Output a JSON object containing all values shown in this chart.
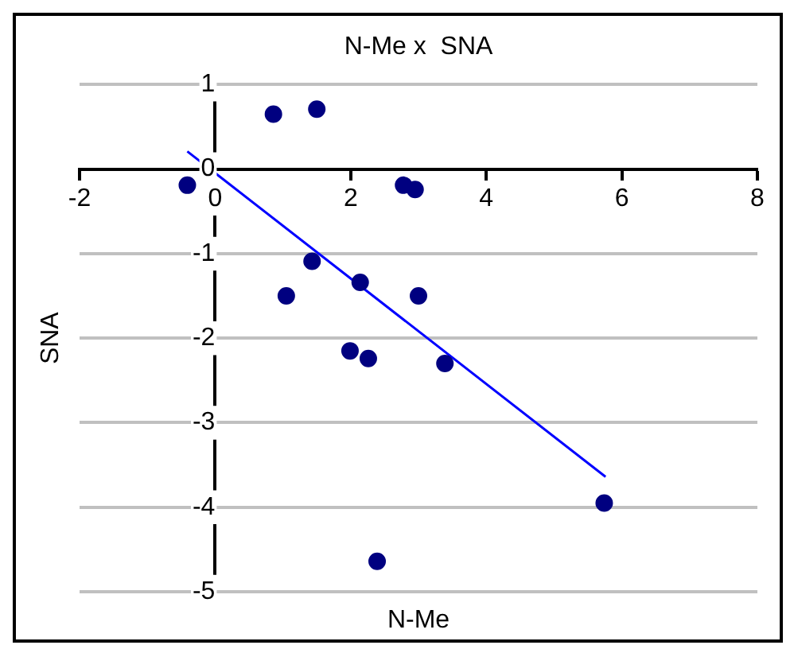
{
  "chart_data": {
    "type": "scatter",
    "title": "N-Me x  SNA",
    "xlabel": "N-Me",
    "ylabel": "SNA",
    "xlim": [
      -2,
      8
    ],
    "xticks": [
      -2,
      0,
      2,
      4,
      6,
      8
    ],
    "ylim": [
      -5,
      1
    ],
    "yticks": [
      -5,
      -4,
      -3,
      -2,
      -1,
      0,
      1
    ],
    "grid": "y",
    "legend": false,
    "marker": "circle",
    "series": [
      {
        "color": "#000080",
        "x": [
          -0.41,
          0.86,
          1.5,
          2.78,
          2.95,
          1.43,
          1.05,
          2.14,
          3.0,
          1.99,
          2.26,
          3.39,
          5.74,
          2.39
        ],
        "values": [
          -0.19,
          0.65,
          0.71,
          -0.19,
          -0.24,
          -1.09,
          -1.5,
          -1.34,
          -1.5,
          -2.15,
          -2.24,
          -2.3,
          -3.95,
          -4.64
        ]
      },
      {
        "type": "line",
        "color": "#0000ff",
        "marker": "none",
        "x": [
          -0.41,
          5.76
        ],
        "values": [
          0.21,
          -3.64
        ]
      }
    ]
  }
}
